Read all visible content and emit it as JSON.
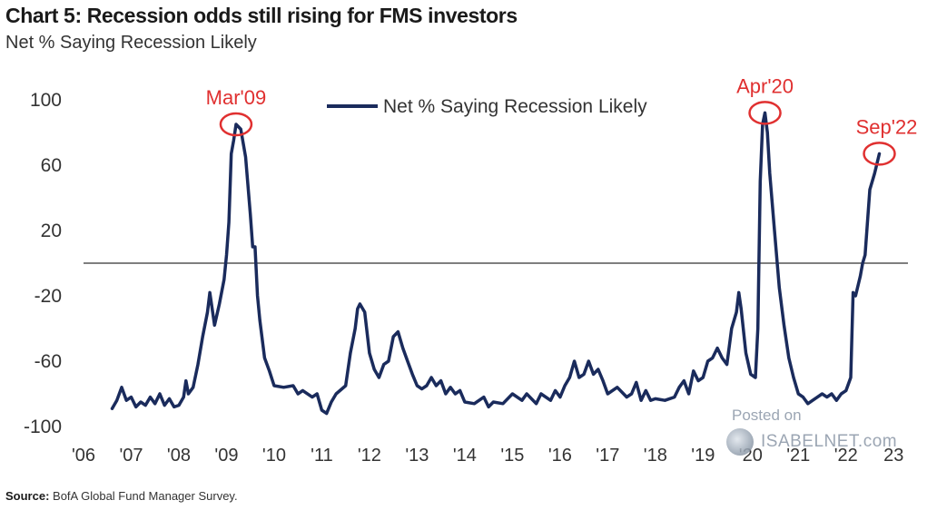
{
  "header": {
    "title": "Chart 5: Recession odds still rising for FMS investors",
    "subtitle": "Net % Saying Recession Likely"
  },
  "footer": {
    "source_label": "Source:",
    "source_text": "BofA Global Fund Manager Survey."
  },
  "watermark": {
    "line1": "Posted on",
    "line2": "ISABELNET.com"
  },
  "colors": {
    "line": "#1a2b5c",
    "annotation": "#e03030",
    "zero_line": "#555555",
    "text": "#333333"
  },
  "chart_data": {
    "type": "line",
    "title": "Chart 5: Recession odds still rising for FMS investors",
    "ylabel": "Net % Saying Recession Likely",
    "xlabel": "",
    "ylim": [
      -100,
      100
    ],
    "xlim": [
      2006,
      2023.3
    ],
    "y_ticks": [
      100,
      60,
      20,
      -20,
      -60,
      -100
    ],
    "x_ticks": [
      {
        "value": 2006,
        "label": "'06"
      },
      {
        "value": 2007,
        "label": "'07"
      },
      {
        "value": 2008,
        "label": "'08"
      },
      {
        "value": 2009,
        "label": "'09"
      },
      {
        "value": 2010,
        "label": "'10"
      },
      {
        "value": 2011,
        "label": "'11"
      },
      {
        "value": 2012,
        "label": "'12"
      },
      {
        "value": 2013,
        "label": "'13"
      },
      {
        "value": 2014,
        "label": "'14"
      },
      {
        "value": 2015,
        "label": "'15"
      },
      {
        "value": 2016,
        "label": "'16"
      },
      {
        "value": 2017,
        "label": "'17"
      },
      {
        "value": 2018,
        "label": "'18"
      },
      {
        "value": 2019,
        "label": "'19"
      },
      {
        "value": 2020,
        "label": "'20"
      },
      {
        "value": 2021,
        "label": "'21"
      },
      {
        "value": 2022,
        "label": "'22"
      },
      {
        "value": 2023,
        "label": "23"
      }
    ],
    "reference_line": 0,
    "legend": {
      "label": "Net % Saying Recession Likely",
      "position": "top-center"
    },
    "annotations": [
      {
        "label": "Mar'09",
        "x": 2009.2,
        "y": 85
      },
      {
        "label": "Apr'20",
        "x": 2020.3,
        "y": 92
      },
      {
        "label": "Sep'22",
        "x": 2022.7,
        "y": 67
      }
    ],
    "series": [
      {
        "name": "Net % Saying Recession Likely",
        "points": [
          [
            2006.6,
            -89
          ],
          [
            2006.7,
            -84
          ],
          [
            2006.8,
            -76
          ],
          [
            2006.9,
            -84
          ],
          [
            2007.0,
            -82
          ],
          [
            2007.1,
            -88
          ],
          [
            2007.2,
            -85
          ],
          [
            2007.3,
            -87
          ],
          [
            2007.4,
            -82
          ],
          [
            2007.5,
            -86
          ],
          [
            2007.6,
            -80
          ],
          [
            2007.7,
            -87
          ],
          [
            2007.8,
            -83
          ],
          [
            2007.9,
            -88
          ],
          [
            2008.0,
            -87
          ],
          [
            2008.1,
            -82
          ],
          [
            2008.15,
            -72
          ],
          [
            2008.2,
            -80
          ],
          [
            2008.3,
            -76
          ],
          [
            2008.4,
            -62
          ],
          [
            2008.5,
            -45
          ],
          [
            2008.6,
            -30
          ],
          [
            2008.65,
            -18
          ],
          [
            2008.75,
            -38
          ],
          [
            2008.85,
            -25
          ],
          [
            2008.95,
            -10
          ],
          [
            2009.0,
            5
          ],
          [
            2009.05,
            25
          ],
          [
            2009.1,
            67
          ],
          [
            2009.15,
            75
          ],
          [
            2009.2,
            85
          ],
          [
            2009.3,
            82
          ],
          [
            2009.4,
            65
          ],
          [
            2009.5,
            30
          ],
          [
            2009.55,
            10
          ],
          [
            2009.6,
            10
          ],
          [
            2009.65,
            -20
          ],
          [
            2009.7,
            -35
          ],
          [
            2009.8,
            -58
          ],
          [
            2009.9,
            -66
          ],
          [
            2010.0,
            -75
          ],
          [
            2010.2,
            -76
          ],
          [
            2010.4,
            -75
          ],
          [
            2010.5,
            -80
          ],
          [
            2010.6,
            -78
          ],
          [
            2010.8,
            -82
          ],
          [
            2010.9,
            -80
          ],
          [
            2011.0,
            -90
          ],
          [
            2011.1,
            -92
          ],
          [
            2011.2,
            -85
          ],
          [
            2011.3,
            -80
          ],
          [
            2011.5,
            -75
          ],
          [
            2011.6,
            -55
          ],
          [
            2011.7,
            -40
          ],
          [
            2011.75,
            -28
          ],
          [
            2011.8,
            -25
          ],
          [
            2011.9,
            -30
          ],
          [
            2012.0,
            -55
          ],
          [
            2012.1,
            -65
          ],
          [
            2012.2,
            -70
          ],
          [
            2012.3,
            -62
          ],
          [
            2012.4,
            -60
          ],
          [
            2012.5,
            -45
          ],
          [
            2012.6,
            -42
          ],
          [
            2012.7,
            -52
          ],
          [
            2012.8,
            -60
          ],
          [
            2012.9,
            -68
          ],
          [
            2013.0,
            -75
          ],
          [
            2013.1,
            -77
          ],
          [
            2013.2,
            -75
          ],
          [
            2013.3,
            -70
          ],
          [
            2013.4,
            -75
          ],
          [
            2013.5,
            -72
          ],
          [
            2013.6,
            -80
          ],
          [
            2013.7,
            -76
          ],
          [
            2013.8,
            -80
          ],
          [
            2013.9,
            -78
          ],
          [
            2014.0,
            -85
          ],
          [
            2014.2,
            -86
          ],
          [
            2014.4,
            -82
          ],
          [
            2014.5,
            -88
          ],
          [
            2014.6,
            -85
          ],
          [
            2014.8,
            -86
          ],
          [
            2015.0,
            -80
          ],
          [
            2015.2,
            -84
          ],
          [
            2015.3,
            -80
          ],
          [
            2015.5,
            -86
          ],
          [
            2015.6,
            -80
          ],
          [
            2015.8,
            -84
          ],
          [
            2015.9,
            -78
          ],
          [
            2016.0,
            -82
          ],
          [
            2016.1,
            -75
          ],
          [
            2016.2,
            -70
          ],
          [
            2016.3,
            -60
          ],
          [
            2016.4,
            -70
          ],
          [
            2016.5,
            -68
          ],
          [
            2016.6,
            -60
          ],
          [
            2016.7,
            -68
          ],
          [
            2016.8,
            -65
          ],
          [
            2016.9,
            -72
          ],
          [
            2017.0,
            -80
          ],
          [
            2017.2,
            -76
          ],
          [
            2017.4,
            -82
          ],
          [
            2017.5,
            -80
          ],
          [
            2017.6,
            -73
          ],
          [
            2017.7,
            -84
          ],
          [
            2017.8,
            -78
          ],
          [
            2017.9,
            -84
          ],
          [
            2018.0,
            -83
          ],
          [
            2018.2,
            -84
          ],
          [
            2018.4,
            -82
          ],
          [
            2018.5,
            -76
          ],
          [
            2018.6,
            -72
          ],
          [
            2018.7,
            -80
          ],
          [
            2018.8,
            -66
          ],
          [
            2018.9,
            -72
          ],
          [
            2019.0,
            -70
          ],
          [
            2019.1,
            -60
          ],
          [
            2019.2,
            -58
          ],
          [
            2019.3,
            -52
          ],
          [
            2019.4,
            -58
          ],
          [
            2019.5,
            -62
          ],
          [
            2019.6,
            -40
          ],
          [
            2019.7,
            -30
          ],
          [
            2019.75,
            -18
          ],
          [
            2019.8,
            -28
          ],
          [
            2019.9,
            -55
          ],
          [
            2020.0,
            -68
          ],
          [
            2020.1,
            -70
          ],
          [
            2020.15,
            -40
          ],
          [
            2020.2,
            50
          ],
          [
            2020.25,
            85
          ],
          [
            2020.3,
            92
          ],
          [
            2020.35,
            80
          ],
          [
            2020.4,
            55
          ],
          [
            2020.5,
            20
          ],
          [
            2020.6,
            -15
          ],
          [
            2020.7,
            -38
          ],
          [
            2020.8,
            -58
          ],
          [
            2020.9,
            -70
          ],
          [
            2021.0,
            -80
          ],
          [
            2021.1,
            -82
          ],
          [
            2021.2,
            -86
          ],
          [
            2021.3,
            -84
          ],
          [
            2021.4,
            -82
          ],
          [
            2021.5,
            -80
          ],
          [
            2021.6,
            -82
          ],
          [
            2021.7,
            -80
          ],
          [
            2021.8,
            -84
          ],
          [
            2021.9,
            -80
          ],
          [
            2022.0,
            -78
          ],
          [
            2022.1,
            -70
          ],
          [
            2022.15,
            -18
          ],
          [
            2022.2,
            -20
          ],
          [
            2022.3,
            -8
          ],
          [
            2022.35,
            0
          ],
          [
            2022.4,
            5
          ],
          [
            2022.5,
            45
          ],
          [
            2022.6,
            55
          ],
          [
            2022.7,
            67
          ]
        ]
      }
    ]
  }
}
